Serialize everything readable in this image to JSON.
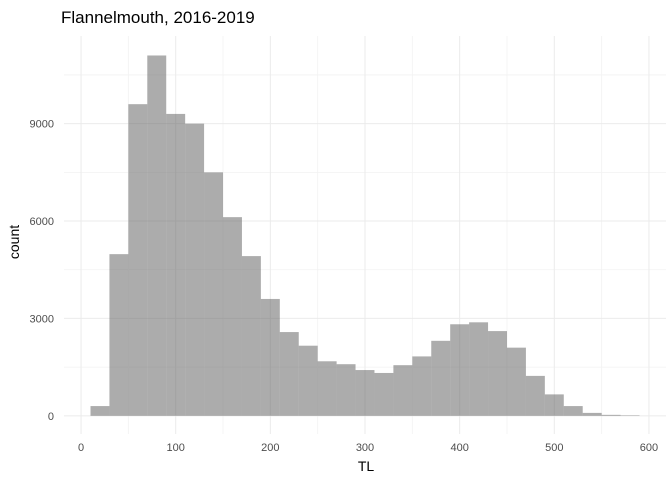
{
  "chart_data": {
    "type": "bar",
    "title": "Flannelmouth, 2016-2019",
    "xlabel": "TL",
    "ylabel": "count",
    "xlim": [
      -18,
      618
    ],
    "ylim": [
      -560,
      11700
    ],
    "x_ticks": [
      0,
      100,
      200,
      300,
      400,
      500,
      600
    ],
    "x_tick_labels": [
      "0",
      "100",
      "200",
      "300",
      "400",
      "500",
      "600"
    ],
    "y_ticks": [
      0,
      3000,
      6000,
      9000
    ],
    "y_tick_labels": [
      "0",
      "3000",
      "6000",
      "9000"
    ],
    "grid": true,
    "bar_color": "#595959",
    "bar_opacity": 0.5,
    "bins": [
      {
        "x0": 10,
        "x1": 30,
        "count": 300
      },
      {
        "x0": 30,
        "x1": 50,
        "count": 4980
      },
      {
        "x0": 50,
        "x1": 70,
        "count": 9600
      },
      {
        "x0": 70,
        "x1": 90,
        "count": 11100
      },
      {
        "x0": 90,
        "x1": 110,
        "count": 9300
      },
      {
        "x0": 110,
        "x1": 130,
        "count": 9000
      },
      {
        "x0": 130,
        "x1": 150,
        "count": 7500
      },
      {
        "x0": 150,
        "x1": 170,
        "count": 6120
      },
      {
        "x0": 170,
        "x1": 190,
        "count": 4920
      },
      {
        "x0": 190,
        "x1": 210,
        "count": 3600
      },
      {
        "x0": 210,
        "x1": 230,
        "count": 2580
      },
      {
        "x0": 230,
        "x1": 250,
        "count": 2160
      },
      {
        "x0": 250,
        "x1": 270,
        "count": 1680
      },
      {
        "x0": 270,
        "x1": 290,
        "count": 1590
      },
      {
        "x0": 290,
        "x1": 310,
        "count": 1410
      },
      {
        "x0": 310,
        "x1": 330,
        "count": 1320
      },
      {
        "x0": 330,
        "x1": 350,
        "count": 1560
      },
      {
        "x0": 350,
        "x1": 370,
        "count": 1830
      },
      {
        "x0": 370,
        "x1": 390,
        "count": 2310
      },
      {
        "x0": 390,
        "x1": 410,
        "count": 2820
      },
      {
        "x0": 410,
        "x1": 430,
        "count": 2880
      },
      {
        "x0": 430,
        "x1": 450,
        "count": 2610
      },
      {
        "x0": 450,
        "x1": 470,
        "count": 2100
      },
      {
        "x0": 470,
        "x1": 490,
        "count": 1230
      },
      {
        "x0": 490,
        "x1": 510,
        "count": 660
      },
      {
        "x0": 510,
        "x1": 530,
        "count": 300
      },
      {
        "x0": 530,
        "x1": 550,
        "count": 90
      },
      {
        "x0": 550,
        "x1": 570,
        "count": 30
      },
      {
        "x0": 570,
        "x1": 590,
        "count": 15
      }
    ]
  }
}
